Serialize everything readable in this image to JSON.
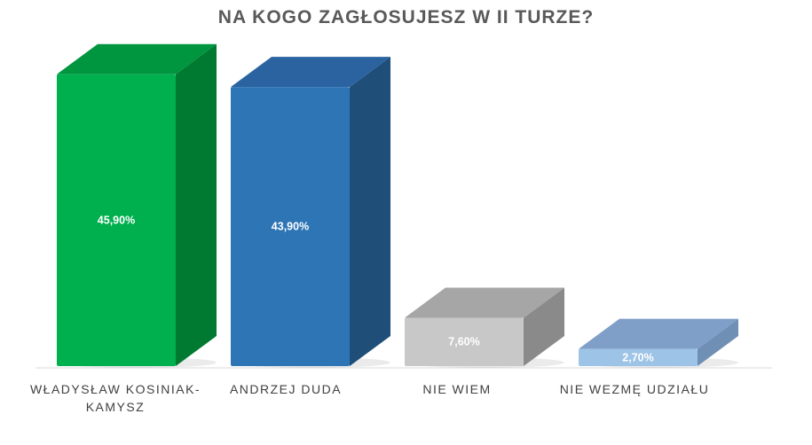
{
  "chart_data": {
    "type": "bar",
    "title": "NA KOGO ZAGŁOSUJESZ W II TURZE?",
    "categories": [
      [
        "WŁADYSŁAW KOSINIAK-",
        "KAMYSZ"
      ],
      [
        "ANDRZEJ DUDA"
      ],
      [
        "NIE WIEM"
      ],
      [
        "NIE WEZMĘ UDZIAŁU"
      ]
    ],
    "values": [
      45.9,
      43.9,
      7.6,
      2.7
    ],
    "value_labels": [
      "45,90%",
      "43,90%",
      "7,60%",
      "2,70%"
    ],
    "colors": [
      {
        "front": "#00b04f",
        "side": "#007a30",
        "top": "#00953f"
      },
      {
        "front": "#2e75b6",
        "side": "#1f4e79",
        "top": "#2a63a0"
      },
      {
        "front": "#c8c8c8",
        "side": "#8a8a8a",
        "top": "#a6a6a6"
      },
      {
        "front": "#9dc3e6",
        "side": "#6f8fb5",
        "top": "#7f9fc8"
      }
    ],
    "ylim": [
      0,
      46
    ],
    "grid": false,
    "legend": "none",
    "style": "3d-column"
  }
}
